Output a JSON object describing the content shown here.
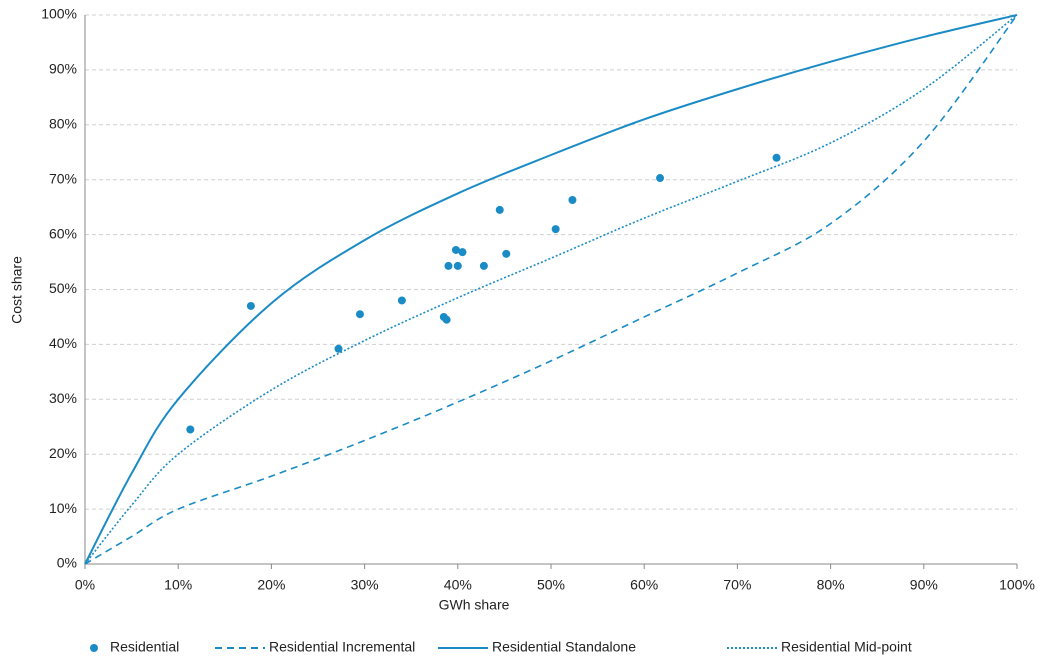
{
  "chart_data": {
    "type": "scatter",
    "x_label": "GWh share",
    "y_label": "Cost share",
    "xlim": [
      0,
      100
    ],
    "ylim": [
      0,
      100
    ],
    "xticks": [
      {
        "value": 0,
        "label": "0%"
      },
      {
        "value": 10,
        "label": "10%"
      },
      {
        "value": 20,
        "label": "20%"
      },
      {
        "value": 30,
        "label": "30%"
      },
      {
        "value": 40,
        "label": "40%"
      },
      {
        "value": 50,
        "label": "50%"
      },
      {
        "value": 60,
        "label": "60%"
      },
      {
        "value": 70,
        "label": "70%"
      },
      {
        "value": 80,
        "label": "80%"
      },
      {
        "value": 90,
        "label": "90%"
      },
      {
        "value": 100,
        "label": "100%"
      }
    ],
    "yticks": [
      {
        "value": 0,
        "label": "0%"
      },
      {
        "value": 10,
        "label": "10%"
      },
      {
        "value": 20,
        "label": "20%"
      },
      {
        "value": 30,
        "label": "30%"
      },
      {
        "value": 40,
        "label": "40%"
      },
      {
        "value": 50,
        "label": "50%"
      },
      {
        "value": 60,
        "label": "60%"
      },
      {
        "value": 70,
        "label": "70%"
      },
      {
        "value": 80,
        "label": "80%"
      },
      {
        "value": 90,
        "label": "90%"
      },
      {
        "value": 100,
        "label": "100%"
      }
    ],
    "grid": true,
    "legend": "bottom",
    "series": [
      {
        "name": "Residential",
        "color": "#1b8bc6",
        "style": "points",
        "x": [
          11.3,
          17.8,
          27.2,
          29.5,
          34,
          38.5,
          38.8,
          39,
          39.8,
          40,
          40.5,
          42.8,
          44.5,
          45.2,
          50.5,
          52.3,
          61.7,
          74.2
        ],
        "values": [
          24.5,
          47,
          39.2,
          45.5,
          48,
          45,
          44.5,
          54.3,
          57.2,
          54.3,
          56.8,
          54.3,
          64.5,
          56.5,
          61,
          66.3,
          70.3,
          74
        ]
      },
      {
        "name": "Residential Incremental",
        "color": "#1b8bc6",
        "style": "dashed",
        "x": [
          0,
          5,
          10,
          20,
          30,
          40,
          50,
          60,
          70,
          80,
          90,
          100
        ],
        "values": [
          0,
          5,
          10,
          16,
          22.5,
          29.5,
          37,
          45,
          53,
          62,
          77,
          100
        ]
      },
      {
        "name": "Residential Standalone",
        "color": "#1b8bc6",
        "style": "solid",
        "x": [
          0,
          5,
          10,
          20,
          30,
          40,
          50,
          60,
          70,
          80,
          90,
          100
        ],
        "values": [
          0,
          16.5,
          30,
          47.5,
          59,
          67.5,
          74.5,
          81,
          86.5,
          91.5,
          96,
          100
        ]
      },
      {
        "name": "Residential Mid-point",
        "color": "#1b8bc6",
        "style": "dotted",
        "x": [
          0,
          5,
          10,
          20,
          30,
          40,
          50,
          60,
          70,
          80,
          90,
          100
        ],
        "values": [
          0,
          10.7,
          20,
          31.7,
          40.7,
          48.5,
          55.7,
          63,
          69.7,
          76.7,
          86.5,
          100
        ]
      }
    ]
  }
}
